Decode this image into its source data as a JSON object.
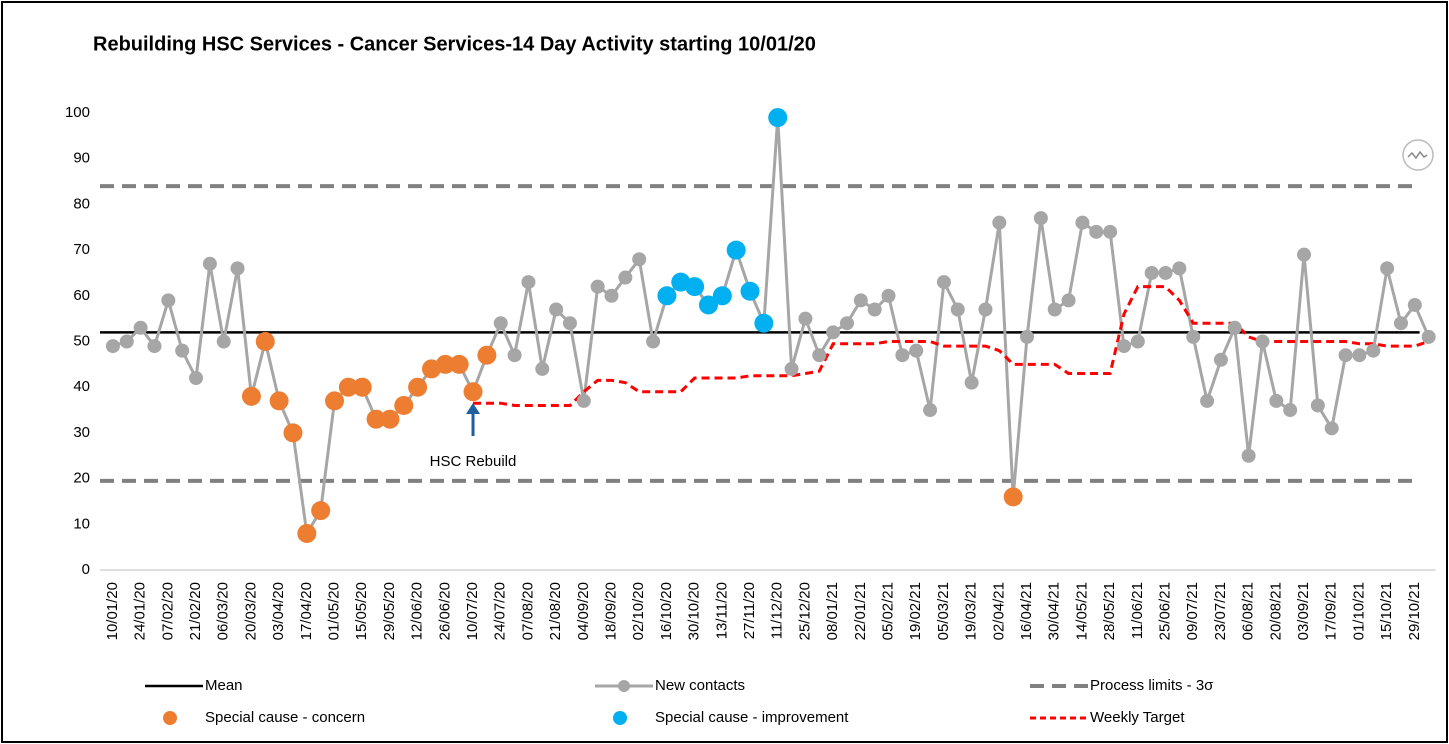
{
  "chart_data": {
    "type": "line",
    "title": "Rebuilding HSC Services - Cancer Services-14 Day Activity starting 10/01/20",
    "categories": [
      "10/01/20",
      null,
      "24/01/20",
      null,
      "07/02/20",
      null,
      "21/02/20",
      null,
      "06/03/20",
      null,
      "20/03/20",
      null,
      "03/04/20",
      null,
      "17/04/20",
      null,
      "01/05/20",
      null,
      "15/05/20",
      null,
      "29/05/20",
      null,
      "12/06/20",
      null,
      "26/06/20",
      null,
      "10/07/20",
      null,
      "24/07/20",
      null,
      "07/08/20",
      null,
      "21/08/20",
      null,
      "04/09/20",
      null,
      "18/09/20",
      null,
      "02/10/20",
      null,
      "16/10/20",
      null,
      "30/10/20",
      null,
      "13/11/20",
      null,
      "27/11/20",
      null,
      "11/12/20",
      null,
      "25/12/20",
      null,
      "08/01/21",
      null,
      "22/01/21",
      null,
      "05/02/21",
      null,
      "19/02/21",
      null,
      "05/03/21",
      null,
      "19/03/21",
      null,
      "02/04/21",
      null,
      "16/04/21",
      null,
      "30/04/21",
      null,
      "14/05/21",
      null,
      "28/05/21",
      null,
      "11/06/21",
      null,
      "25/06/21",
      null,
      "09/07/21",
      null,
      "23/07/21",
      null,
      "06/08/21",
      null,
      "20/08/21",
      null,
      "03/09/21",
      null,
      "17/09/21",
      null,
      "01/10/21",
      null,
      "15/10/21",
      null,
      "29/10/21",
      null
    ],
    "series": [
      {
        "name": "New contacts",
        "color": "#a6a6a6",
        "style": "line-markers",
        "values": [
          49,
          50,
          53,
          49,
          59,
          48,
          42,
          67,
          50,
          66,
          38,
          50,
          37,
          30,
          8,
          13,
          37,
          40,
          40,
          33,
          33,
          36,
          40,
          44,
          45,
          45,
          39,
          47,
          54,
          47,
          63,
          44,
          57,
          54,
          37,
          62,
          60,
          64,
          68,
          50,
          60,
          63,
          62,
          58,
          60,
          70,
          61,
          54,
          99,
          44,
          55,
          47,
          52,
          54,
          59,
          57,
          60,
          47,
          48,
          35,
          63,
          57,
          41,
          57,
          76,
          16,
          51,
          77,
          57,
          59,
          76,
          74,
          74,
          49,
          50,
          65,
          65,
          66,
          51,
          37,
          46,
          53,
          25,
          50,
          37,
          35,
          69,
          36,
          31,
          47,
          47,
          48,
          66,
          54,
          58,
          51
        ]
      },
      {
        "name": "Special cause - concern",
        "color": "#ed7d31",
        "style": "markers",
        "values": [
          null,
          null,
          null,
          null,
          null,
          null,
          null,
          null,
          null,
          null,
          38,
          50,
          37,
          30,
          8,
          13,
          37,
          40,
          40,
          33,
          33,
          36,
          40,
          44,
          45,
          45,
          39,
          47,
          null,
          null,
          null,
          null,
          null,
          null,
          null,
          null,
          null,
          null,
          null,
          null,
          null,
          null,
          null,
          null,
          null,
          null,
          null,
          null,
          null,
          null,
          null,
          null,
          null,
          null,
          null,
          null,
          null,
          null,
          null,
          null,
          null,
          null,
          null,
          null,
          null,
          16,
          null,
          null,
          null,
          null,
          null,
          null,
          null,
          null,
          null,
          null,
          null,
          null,
          null,
          null,
          null,
          null,
          null,
          null,
          null,
          null,
          null,
          null,
          null,
          null,
          null,
          null,
          null,
          null,
          null,
          null
        ]
      },
      {
        "name": "Special cause  - improvement",
        "color": "#00b0f0",
        "style": "markers",
        "values": [
          null,
          null,
          null,
          null,
          null,
          null,
          null,
          null,
          null,
          null,
          null,
          null,
          null,
          null,
          null,
          null,
          null,
          null,
          null,
          null,
          null,
          null,
          null,
          null,
          null,
          null,
          null,
          null,
          null,
          null,
          null,
          null,
          null,
          null,
          null,
          null,
          null,
          null,
          null,
          null,
          60,
          63,
          62,
          58,
          60,
          70,
          61,
          54,
          99,
          null,
          null,
          null,
          null,
          null,
          null,
          null,
          null,
          null,
          null,
          null,
          null,
          null,
          null,
          null,
          null,
          null,
          null,
          null,
          null,
          null,
          null,
          null,
          null,
          null,
          null,
          null,
          null,
          null,
          null,
          null,
          null,
          null,
          null,
          null,
          null,
          null,
          null,
          null,
          null,
          null,
          null,
          null,
          null,
          null,
          null,
          null
        ]
      },
      {
        "name": "Weekly Target",
        "color": "#ff0000",
        "style": "dashed",
        "values": [
          null,
          null,
          null,
          null,
          null,
          null,
          null,
          null,
          null,
          null,
          null,
          null,
          null,
          null,
          null,
          null,
          null,
          null,
          null,
          null,
          null,
          null,
          null,
          null,
          null,
          null,
          36.5,
          36.5,
          36.5,
          36,
          36,
          36,
          36,
          36,
          39,
          41.5,
          41.5,
          41,
          39,
          39,
          39,
          39,
          42,
          42,
          42,
          42,
          42.5,
          42.5,
          42.5,
          42.5,
          43,
          43.5,
          49.5,
          49.5,
          49.5,
          49.5,
          50,
          50,
          50,
          50,
          49,
          49,
          49,
          49,
          48,
          45,
          45,
          45,
          45,
          43,
          43,
          43,
          43,
          56,
          62,
          62,
          62,
          59,
          54,
          54,
          54,
          54,
          51,
          50,
          50,
          50,
          50,
          50,
          50,
          50,
          49.5,
          49.5,
          49,
          49,
          49,
          50
        ]
      }
    ],
    "reference_lines": [
      {
        "name": "Mean",
        "color": "#000000",
        "style": "solid",
        "values": [
          52
        ]
      },
      {
        "name": "Process limits - 3σ",
        "color": "#808080",
        "style": "dashed",
        "values": [
          84,
          19.5
        ]
      }
    ],
    "annotation": {
      "text": "HSC Rebuild",
      "category": "10/07/20"
    },
    "ylim": [
      0,
      100
    ],
    "yticks": [
      0,
      10,
      20,
      30,
      40,
      50,
      60,
      70,
      80,
      90,
      100
    ],
    "grid": false
  }
}
